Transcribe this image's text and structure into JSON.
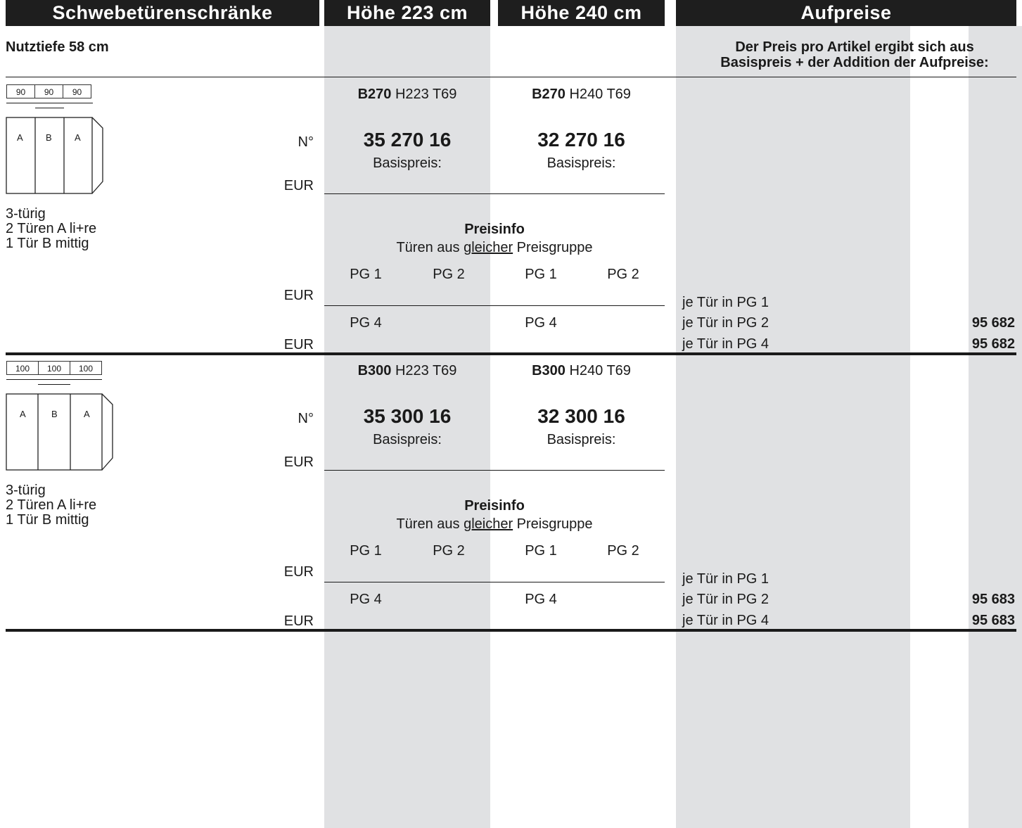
{
  "header": {
    "col1": "Schwebetürenschränke",
    "col2": "Höhe 223 cm",
    "col3": "Höhe 240 cm",
    "col4": "Aufpreise"
  },
  "subheader": {
    "depth": "Nutztiefe 58 cm",
    "surcharge_note_line1": "Der Preis pro Artikel ergibt sich aus",
    "surcharge_note_line2": "Basispreis + der Addition der Aufpreise:"
  },
  "colors": {
    "header_bg": "#1e1e1e",
    "band": "#e0e1e3"
  },
  "sections": [
    {
      "dims": [
        "90",
        "90",
        "90"
      ],
      "doors": [
        "A",
        "B",
        "A"
      ],
      "no_label": "N°",
      "eur1": "EUR",
      "eur2": "EUR",
      "eur3": "EUR",
      "desc": "3-türig\n2 Türen A li+re\n1 Tür B mittig",
      "model223_code": "B270",
      "model223_dims": " H223 T69",
      "model240_code": "B270",
      "model240_dims": " H240 T69",
      "artnr223": "35 270 16",
      "artnr240": "32 270 16",
      "basis": "Basispreis:",
      "preisinfo": "Preisinfo",
      "preisinfo_a": "Türen aus ",
      "preisinfo_u": "gleicher",
      "preisinfo_b": " Preisgruppe",
      "pg1": "PG 1",
      "pg2": "PG 2",
      "pg4": "PG 4",
      "sur_pg1": "je Tür in PG 1",
      "sur_pg2": "je Tür in PG 2",
      "sur_pg4": "je Tür in PG 4",
      "sur_pg2_nr": "95 682",
      "sur_pg4_nr": "95 682"
    },
    {
      "dims": [
        "100",
        "100",
        "100"
      ],
      "doors": [
        "A",
        "B",
        "A"
      ],
      "no_label": "N°",
      "eur1": "EUR",
      "eur2": "EUR",
      "eur3": "EUR",
      "desc": "3-türig\n2 Türen A li+re\n1 Tür B mittig",
      "model223_code": "B300",
      "model223_dims": " H223 T69",
      "model240_code": "B300",
      "model240_dims": " H240 T69",
      "artnr223": "35 300 16",
      "artnr240": "32 300 16",
      "basis": "Basispreis:",
      "preisinfo": "Preisinfo",
      "preisinfo_a": "Türen aus ",
      "preisinfo_u": "gleicher",
      "preisinfo_b": " Preisgruppe",
      "pg1": "PG 1",
      "pg2": "PG 2",
      "pg4": "PG 4",
      "sur_pg1": "je Tür in PG 1",
      "sur_pg2": "je Tür in PG 2",
      "sur_pg4": "je Tür in PG 4",
      "sur_pg2_nr": "95 683",
      "sur_pg4_nr": "95 683"
    }
  ]
}
